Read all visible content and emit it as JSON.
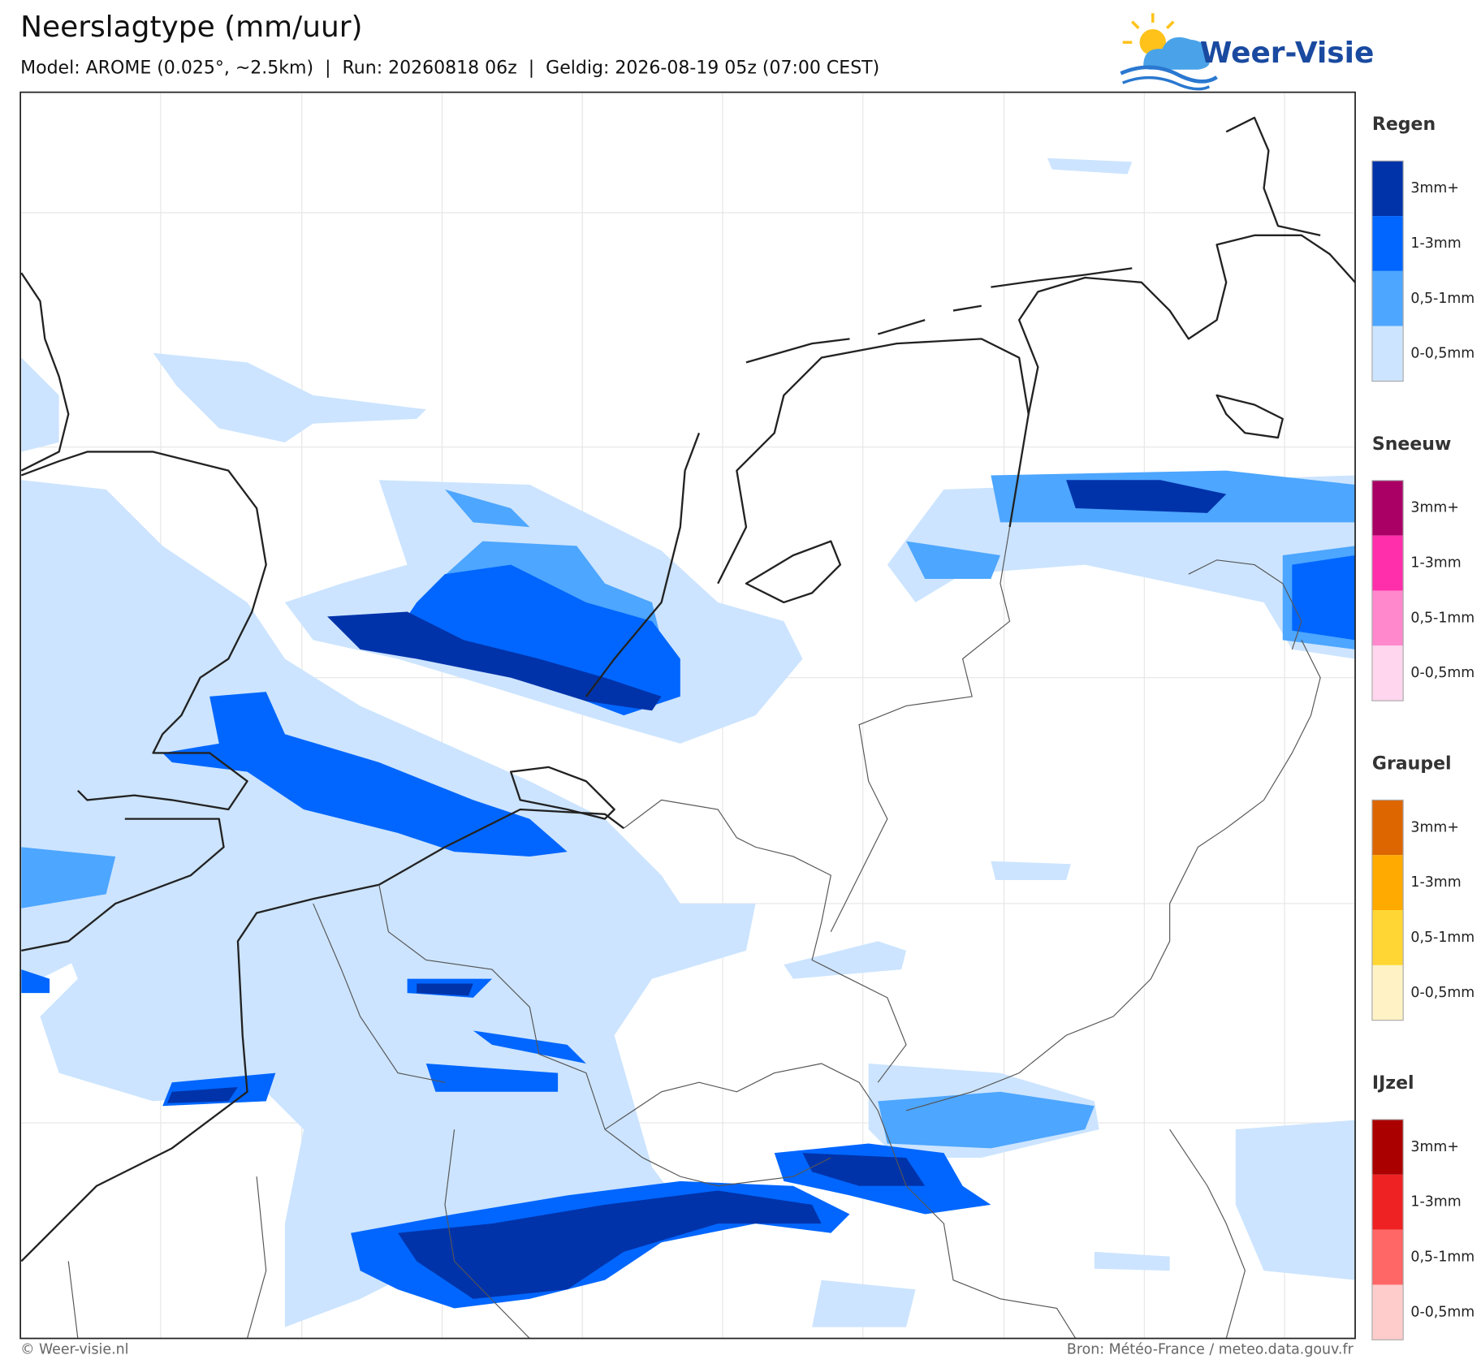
{
  "header": {
    "title": "Neerslagtype (mm/uur)",
    "subtitle": "Model: AROME (0.025°, ~2.5km)  |  Run: 20260818 06z  |  Geldig: 2026-08-19 05z (07:00 CEST)",
    "logo": "Weer-Visie"
  },
  "legend": [
    {
      "title": "Regen",
      "items": [
        {
          "label": "3mm+",
          "color": "#0033aa"
        },
        {
          "label": "1-3mm",
          "color": "#0066ff"
        },
        {
          "label": "0,5-1mm",
          "color": "#4da6ff"
        },
        {
          "label": "0-0,5mm",
          "color": "#cce4ff"
        }
      ]
    },
    {
      "title": "Sneeuw",
      "items": [
        {
          "label": "3mm+",
          "color": "#aa0066"
        },
        {
          "label": "1-3mm",
          "color": "#ff2eaa"
        },
        {
          "label": "0,5-1mm",
          "color": "#ff88cc"
        },
        {
          "label": "0-0,5mm",
          "color": "#ffd6ee"
        }
      ]
    },
    {
      "title": "Graupel",
      "items": [
        {
          "label": "3mm+",
          "color": "#dd6600"
        },
        {
          "label": "1-3mm",
          "color": "#ffaa00"
        },
        {
          "label": "0,5-1mm",
          "color": "#ffd633"
        },
        {
          "label": "0-0,5mm",
          "color": "#fff2c4"
        }
      ]
    },
    {
      "title": "IJzel",
      "items": [
        {
          "label": "3mm+",
          "color": "#aa0000"
        },
        {
          "label": "1-3mm",
          "color": "#ee2222"
        },
        {
          "label": "0,5-1mm",
          "color": "#ff6666"
        },
        {
          "label": "0-0,5mm",
          "color": "#ffcccc"
        }
      ]
    }
  ],
  "footer": {
    "left": "© Weer-visie.nl",
    "right": "Bron: Météo-France / meteo.data.gouv.fr"
  }
}
